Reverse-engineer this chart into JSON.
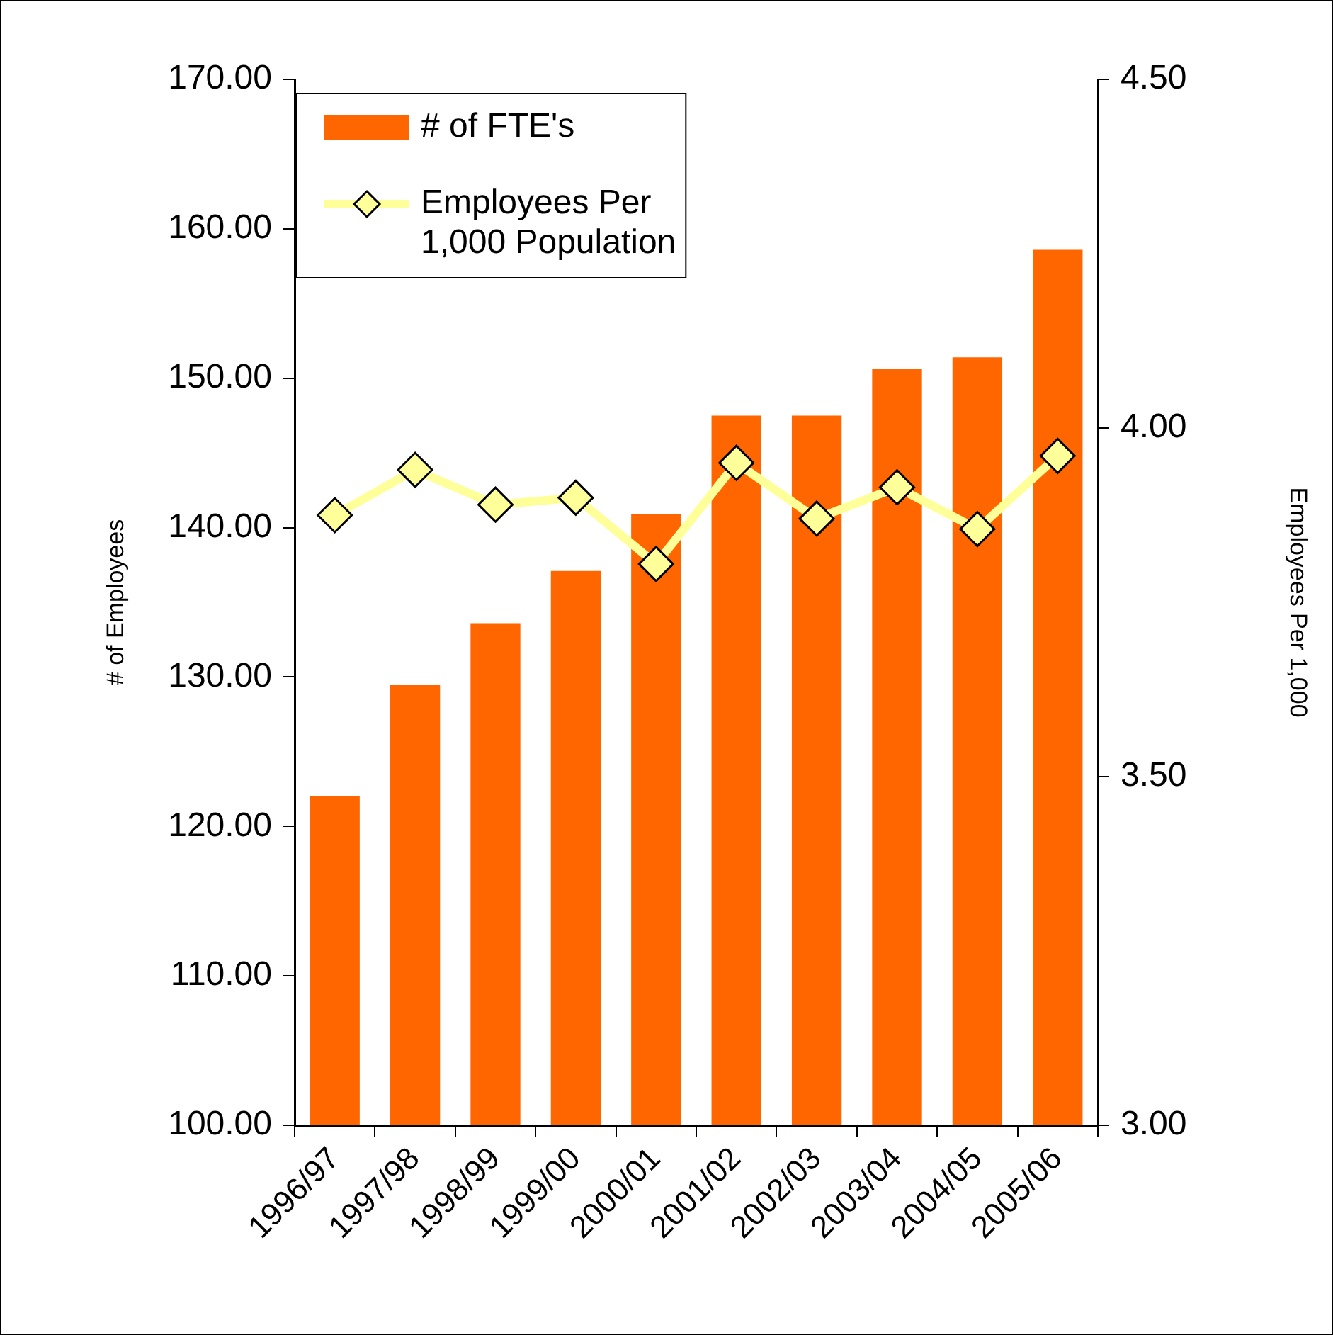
{
  "chart_data": {
    "type": "bar",
    "categories": [
      "1996/97",
      "1997/98",
      "1998/99",
      "1999/00",
      "2000/01",
      "2001/02",
      "2002/03",
      "2003/04",
      "2004/05",
      "2005/06"
    ],
    "ylabel": "# of Employees",
    "y2label": "Employees Per 1,000",
    "ylim": [
      100,
      170
    ],
    "yticks": [
      {
        "value": 100,
        "label": "100.00"
      },
      {
        "value": 110,
        "label": "110.00"
      },
      {
        "value": 120,
        "label": "120.00"
      },
      {
        "value": 130,
        "label": "130.00"
      },
      {
        "value": 140,
        "label": "140.00"
      },
      {
        "value": 150,
        "label": "150.00"
      },
      {
        "value": 160,
        "label": "160.00"
      },
      {
        "value": 170,
        "label": "170.00"
      }
    ],
    "y2lim": [
      3,
      4.5
    ],
    "y2ticks": [
      {
        "value": 3,
        "label": "3.00"
      },
      {
        "value": 3.5,
        "label": "3.50"
      },
      {
        "value": 4,
        "label": "4.00"
      },
      {
        "value": 4.5,
        "label": "4.50"
      }
    ],
    "legend": "top left",
    "marker": "diamond",
    "series": [
      {
        "name": "# of FTE's",
        "type": "bar",
        "color": "#ff6600",
        "values": [
          122.0,
          129.5,
          133.6,
          137.1,
          140.9,
          147.5,
          147.5,
          150.6,
          151.4,
          158.6
        ]
      },
      {
        "name": "Employees Per 1,000 Population",
        "type": "line",
        "axis": "y2",
        "color": "#ffff99",
        "values": [
          3.875,
          3.94,
          3.89,
          3.9,
          3.805,
          3.95,
          3.87,
          3.915,
          3.855,
          3.96
        ]
      }
    ]
  }
}
